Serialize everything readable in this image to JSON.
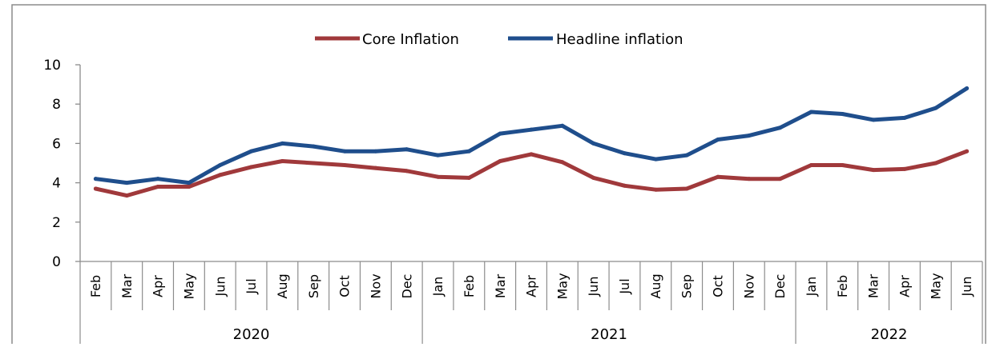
{
  "chart_data": {
    "type": "line",
    "title": "",
    "xlabel": "",
    "ylabel": "",
    "ylim": [
      0,
      10
    ],
    "yticks": [
      "0",
      "2",
      "4",
      "6",
      "8",
      "10"
    ],
    "grid": false,
    "legend_position": "top-center",
    "categories": [
      "Feb",
      "Mar",
      "Apr",
      "May",
      "Jun",
      "Jul",
      "Aug",
      "Sep",
      "Oct",
      "Nov",
      "Dec",
      "Jan",
      "Feb",
      "Mar",
      "Apr",
      "May",
      "Jun",
      "Jul",
      "Aug",
      "Sep",
      "Oct",
      "Nov",
      "Dec",
      "Jan",
      "Feb",
      "Mar",
      "Apr",
      "May",
      "Jun"
    ],
    "year_groups": [
      {
        "label": "2020",
        "count": 11
      },
      {
        "label": "2021",
        "count": 12
      },
      {
        "label": "2022",
        "count": 6
      }
    ],
    "series": [
      {
        "name": "Core Inflation",
        "color": "#A0393B",
        "values": [
          3.7,
          3.35,
          3.8,
          3.8,
          4.4,
          4.8,
          5.1,
          5.0,
          4.9,
          4.75,
          4.6,
          4.3,
          4.25,
          5.1,
          5.45,
          5.05,
          4.25,
          3.85,
          3.65,
          3.7,
          4.3,
          4.2,
          4.2,
          4.9,
          4.9,
          4.65,
          4.7,
          5.0,
          5.6
        ]
      },
      {
        "name": "Headline inflation",
        "color": "#1F4E8C",
        "values": [
          4.2,
          4.0,
          4.2,
          4.0,
          4.9,
          5.6,
          6.0,
          5.85,
          5.6,
          5.6,
          5.7,
          5.4,
          5.6,
          6.5,
          6.7,
          6.9,
          6.0,
          5.5,
          5.2,
          5.4,
          6.2,
          6.4,
          6.8,
          7.6,
          7.5,
          7.2,
          7.3,
          7.8,
          8.8
        ]
      }
    ]
  }
}
